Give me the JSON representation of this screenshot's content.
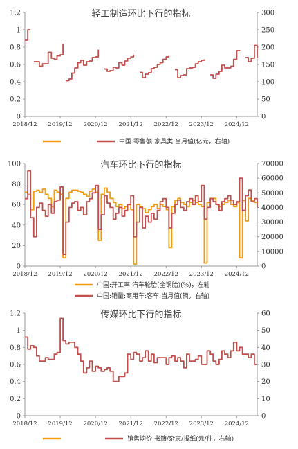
{
  "chart_data": [
    {
      "type": "line",
      "title": "轻工制造环比下行的指标",
      "x_ticks": [
        "2018/12",
        "2019/12",
        "2020/12",
        "2021/12",
        "2022/12",
        "2023/12",
        "2024/12"
      ],
      "y_left": {
        "range": [
          0,
          1.2
        ],
        "ticks": [
          "0",
          "0.2",
          "0.4",
          "0.6",
          "0.8",
          "1",
          "1.2"
        ]
      },
      "y_right": {
        "range": [
          0,
          300
        ],
        "ticks": [
          "0",
          "50",
          "100",
          "150",
          "200",
          "250",
          "300"
        ]
      },
      "legend": [
        {
          "label": "",
          "color": "#f39c12",
          "axis": "left"
        },
        {
          "label": "中国:零售额:家具类:当月值(亿元，右轴)",
          "color": "#c0504d",
          "axis": "right"
        }
      ],
      "series": [
        {
          "name": "中国:零售额:家具类:当月值(亿元，右轴)",
          "axis": "right",
          "color": "#c0504d",
          "segments": [
            {
              "x": [
                2018.92,
                2019.0,
                2019.08
              ],
              "y": [
                220,
                250,
                250
              ]
            },
            {
              "x": [
                2019.17,
                2019.25,
                2019.33,
                2019.42,
                2019.5,
                2019.58,
                2019.67,
                2019.75,
                2019.83,
                2019.92,
                2020.0
              ],
              "y": [
                158,
                158,
                145,
                152,
                152,
                185,
                168,
                165,
                175,
                178,
                210
              ]
            },
            {
              "x": [
                2020.08,
                2020.17,
                2020.25,
                2020.33,
                2020.42,
                2020.5,
                2020.58,
                2020.67,
                2020.75,
                2020.83,
                2020.92,
                2021.0
              ],
              "y": [
                103,
                108,
                125,
                140,
                155,
                162,
                148,
                158,
                160,
                170,
                172,
                193
              ]
            },
            {
              "x": [
                2021.17,
                2021.25,
                2021.33,
                2021.42,
                2021.5,
                2021.58,
                2021.67,
                2021.75,
                2021.83,
                2021.92,
                2022.0
              ],
              "y": [
                137,
                130,
                132,
                142,
                140,
                155,
                148,
                160,
                168,
                172,
                178
              ]
            },
            {
              "x": [
                2022.17,
                2022.25,
                2022.33,
                2022.42,
                2022.5,
                2022.58,
                2022.67,
                2022.75,
                2022.83,
                2022.92,
                2023.0
              ],
              "y": [
                127,
                112,
                122,
                126,
                138,
                142,
                150,
                155,
                165,
                172,
                175
              ]
            },
            {
              "x": [
                2023.17,
                2023.25,
                2023.33,
                2023.42,
                2023.5,
                2023.58,
                2023.67,
                2023.75,
                2023.83,
                2023.92,
                2024.0
              ],
              "y": [
                135,
                112,
                118,
                120,
                138,
                140,
                142,
                152,
                158,
                162,
                165
              ]
            },
            {
              "x": [
                2024.17,
                2024.25,
                2024.33,
                2024.42,
                2024.5,
                2024.58,
                2024.67,
                2024.75,
                2024.83,
                2024.92,
                2025.0
              ],
              "y": [
                120,
                110,
                122,
                130,
                148,
                140,
                140,
                145,
                165,
                190,
                192
              ]
            },
            {
              "x": [
                2025.17,
                2025.25,
                2025.33,
                2025.42,
                2025.5
              ],
              "y": [
                170,
                158,
                168,
                205,
                170
              ]
            }
          ]
        }
      ]
    },
    {
      "type": "line",
      "title": "汽车环比下行的指标",
      "x_ticks": [
        "2018/12",
        "2019/12",
        "2020/12",
        "2021/12",
        "2022/12",
        "2023/12",
        "2024/12"
      ],
      "y_left": {
        "range": [
          0,
          100
        ],
        "ticks": [
          "0",
          "20",
          "40",
          "60",
          "80",
          "100"
        ]
      },
      "y_right": {
        "range": [
          0,
          70000
        ],
        "ticks": [
          "0",
          "10000",
          "20000",
          "30000",
          "40000",
          "50000",
          "60000",
          "70000"
        ]
      },
      "legend": [
        {
          "label": "中国:开工率:汽车轮胎(全钢胎)(%)，左轴",
          "color": "#f39c12",
          "axis": "left"
        },
        {
          "label": "中国:销量:商用车:客车:当月值(辆，右轴)",
          "color": "#c0504d",
          "axis": "right"
        }
      ],
      "series": [
        {
          "name": "中国:开工率:汽车轮胎(全钢胎)(%)，左轴",
          "axis": "left",
          "color": "#f39c12",
          "x": [
            2018.92,
            2019.0,
            2019.08,
            2019.17,
            2019.25,
            2019.33,
            2019.42,
            2019.5,
            2019.58,
            2019.67,
            2019.75,
            2019.83,
            2019.92,
            2020.0,
            2020.08,
            2020.17,
            2020.25,
            2020.33,
            2020.42,
            2020.5,
            2020.58,
            2020.67,
            2020.75,
            2020.83,
            2020.92,
            2021.0,
            2021.08,
            2021.17,
            2021.25,
            2021.33,
            2021.42,
            2021.5,
            2021.58,
            2021.67,
            2021.75,
            2021.83,
            2021.92,
            2022.0,
            2022.08,
            2022.17,
            2022.25,
            2022.33,
            2022.42,
            2022.5,
            2022.58,
            2022.67,
            2022.75,
            2022.83,
            2022.92,
            2023.0,
            2023.08,
            2023.17,
            2023.25,
            2023.33,
            2023.42,
            2023.5,
            2023.58,
            2023.67,
            2023.75,
            2023.83,
            2023.92,
            2024.0,
            2024.08,
            2024.17,
            2024.25,
            2024.33,
            2024.42,
            2024.5,
            2024.58,
            2024.67,
            2024.75,
            2024.83,
            2024.92,
            2025.0,
            2025.08,
            2025.17,
            2025.25,
            2025.33,
            2025.42,
            2025.5
          ],
          "y": [
            72,
            70,
            55,
            73,
            74,
            72,
            75,
            70,
            66,
            58,
            74,
            72,
            70,
            8,
            66,
            72,
            74,
            74,
            73,
            72,
            70,
            68,
            73,
            75,
            72,
            25,
            70,
            76,
            72,
            66,
            62,
            58,
            60,
            56,
            58,
            60,
            55,
            2,
            60,
            58,
            56,
            52,
            55,
            58,
            60,
            56,
            60,
            58,
            55,
            18,
            58,
            64,
            66,
            62,
            60,
            58,
            62,
            64,
            62,
            60,
            58,
            3,
            62,
            66,
            66,
            60,
            58,
            60,
            62,
            64,
            60,
            58,
            62,
            8,
            64,
            44,
            66,
            64,
            62,
            60
          ]
        },
        {
          "name": "中国:销量:商用车:客车:当月值(辆，右轴)",
          "axis": "right",
          "color": "#c0504d",
          "x": [
            2018.92,
            2019.0,
            2019.08,
            2019.17,
            2019.25,
            2019.33,
            2019.42,
            2019.5,
            2019.58,
            2019.67,
            2019.75,
            2019.83,
            2019.92,
            2020.0,
            2020.08,
            2020.17,
            2020.25,
            2020.33,
            2020.42,
            2020.5,
            2020.58,
            2020.67,
            2020.75,
            2020.83,
            2020.92,
            2021.0,
            2021.08,
            2021.17,
            2021.25,
            2021.33,
            2021.42,
            2021.5,
            2021.58,
            2021.67,
            2021.75,
            2021.83,
            2021.92,
            2022.0,
            2022.08,
            2022.17,
            2022.25,
            2022.33,
            2022.42,
            2022.5,
            2022.58,
            2022.67,
            2022.75,
            2022.83,
            2022.92,
            2023.0,
            2023.08,
            2023.17,
            2023.25,
            2023.33,
            2023.42,
            2023.5,
            2023.58,
            2023.67,
            2023.75,
            2023.83,
            2023.92,
            2024.0,
            2024.08,
            2024.17,
            2024.25,
            2024.33,
            2024.42,
            2024.5,
            2024.58,
            2024.67,
            2024.75,
            2024.83,
            2024.92,
            2025.0,
            2025.08,
            2025.17,
            2025.25,
            2025.33,
            2025.42,
            2025.5
          ],
          "y": [
            46000,
            65000,
            33000,
            20000,
            40000,
            43000,
            38000,
            34000,
            42000,
            36000,
            44000,
            45000,
            54000,
            8000,
            30000,
            40000,
            43000,
            44000,
            38000,
            40000,
            35000,
            44000,
            46000,
            50000,
            55000,
            25000,
            35000,
            48000,
            43000,
            40000,
            32000,
            36000,
            40000,
            34000,
            38000,
            42000,
            48000,
            20000,
            30000,
            40000,
            26000,
            34000,
            30000,
            36000,
            32000,
            38000,
            44000,
            46000,
            40000,
            26000,
            36000,
            42000,
            45000,
            40000,
            38000,
            44000,
            46000,
            42000,
            48000,
            44000,
            55000,
            32000,
            40000,
            46000,
            44000,
            42000,
            38000,
            44000,
            46000,
            48000,
            45000,
            42000,
            44000,
            60000,
            38000,
            48000,
            52000,
            44000,
            46000,
            40000
          ]
        }
      ]
    },
    {
      "type": "line",
      "title": "传媒环比下行的指标",
      "x_ticks": [
        "2018/12",
        "2019/12",
        "2020/12",
        "2021/12",
        "2022/12",
        "2023/12",
        "2024/12"
      ],
      "y_left": {
        "range": [
          0,
          1.2
        ],
        "ticks": [
          "0",
          "0.2",
          "0.4",
          "0.6",
          "0.8",
          "1",
          "1.2"
        ]
      },
      "y_right": {
        "range": [
          0,
          60
        ],
        "ticks": [
          "0",
          "10",
          "20",
          "30",
          "40",
          "50",
          "60"
        ]
      },
      "legend": [
        {
          "label": "",
          "color": "#f39c12",
          "axis": "left"
        },
        {
          "label": "销售均价:书籍/杂志/报纸(元/件，右轴)",
          "color": "#c0504d",
          "axis": "right"
        }
      ],
      "series": [
        {
          "name": "销售均价:书籍/杂志/报纸(元/件，右轴)",
          "axis": "right",
          "color": "#c0504d",
          "x": [
            2018.92,
            2019.0,
            2019.08,
            2019.17,
            2019.25,
            2019.33,
            2019.42,
            2019.5,
            2019.58,
            2019.67,
            2019.75,
            2019.83,
            2019.92,
            2020.0,
            2020.08,
            2020.17,
            2020.25,
            2020.33,
            2020.42,
            2020.5,
            2020.58,
            2020.67,
            2020.75,
            2020.83,
            2020.92,
            2021.0,
            2021.08,
            2021.17,
            2021.25,
            2021.33,
            2021.42,
            2021.5,
            2021.58,
            2021.67,
            2021.75,
            2021.83,
            2021.92,
            2022.0,
            2022.08,
            2022.17,
            2022.25,
            2022.33,
            2022.42,
            2022.5,
            2022.58,
            2022.67,
            2022.75,
            2022.83,
            2022.92,
            2023.0,
            2023.08,
            2023.17,
            2023.25,
            2023.33,
            2023.42,
            2023.5,
            2023.58,
            2023.67,
            2023.75,
            2023.83,
            2023.92,
            2024.0,
            2024.08,
            2024.17,
            2024.25,
            2024.33,
            2024.42,
            2024.5,
            2024.58,
            2024.67,
            2024.75,
            2024.83,
            2024.92,
            2025.0,
            2025.08,
            2025.17,
            2025.25,
            2025.33,
            2025.42,
            2025.5
          ],
          "y": [
            46,
            39,
            41,
            40,
            35,
            32,
            32,
            34,
            33,
            33,
            36,
            37,
            57,
            44,
            42,
            43,
            43,
            40,
            36,
            32,
            25,
            28,
            32,
            26,
            29,
            28,
            26,
            27,
            28,
            26,
            20,
            20,
            23,
            23,
            25,
            36,
            33,
            37,
            36,
            32,
            34,
            38,
            32,
            36,
            31,
            34,
            34,
            34,
            30,
            34,
            35,
            32,
            34,
            32,
            28,
            36,
            32,
            32,
            33,
            35,
            30,
            30,
            38,
            36,
            32,
            30,
            33,
            38,
            36,
            34,
            38,
            43,
            38,
            40,
            36,
            36,
            34,
            36,
            30,
            30
          ]
        }
      ]
    }
  ]
}
